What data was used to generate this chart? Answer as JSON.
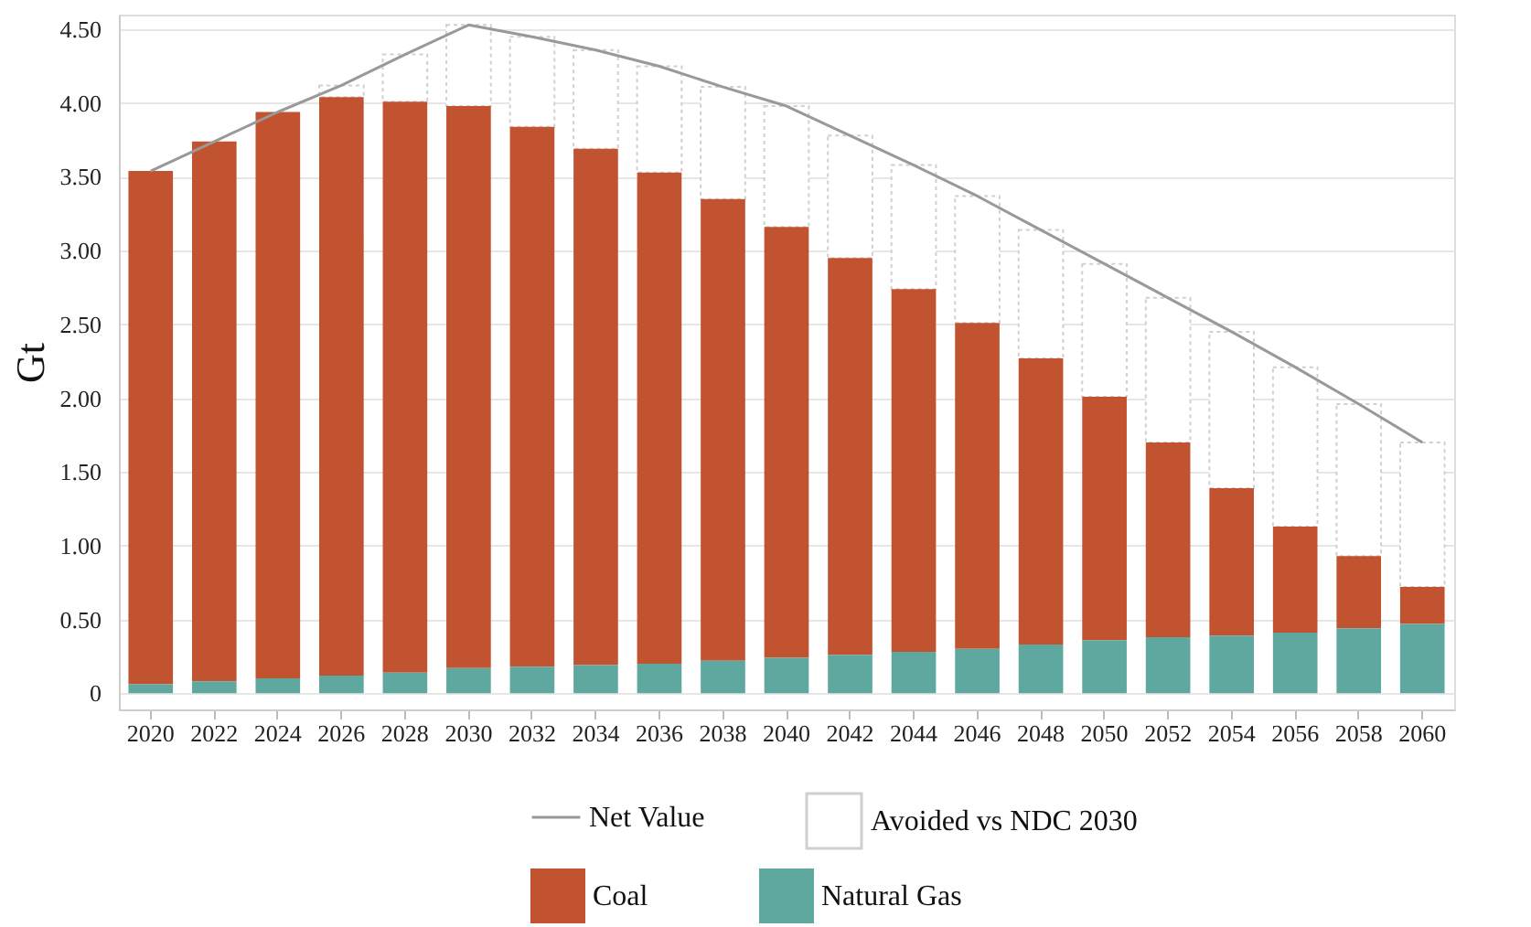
{
  "chart_data": {
    "type": "bar",
    "ylabel": "Gt",
    "stacked": true,
    "legend": "bottom",
    "grid": "y",
    "categories": [
      "2020",
      "2022",
      "2024",
      "2026",
      "2028",
      "2030",
      "2032",
      "2034",
      "2036",
      "2038",
      "2040",
      "2042",
      "2044",
      "2046",
      "2048",
      "2050",
      "2052",
      "2054",
      "2056",
      "2058",
      "2060"
    ],
    "ylim": [
      -0.11,
      4.6
    ],
    "yticks": [
      {
        "value": 0,
        "label": "0"
      },
      {
        "value": 0.5,
        "label": "0.50"
      },
      {
        "value": 1,
        "label": "1.00"
      },
      {
        "value": 1.5,
        "label": "1.50"
      },
      {
        "value": 2,
        "label": "2.00"
      },
      {
        "value": 2.5,
        "label": "2.50"
      },
      {
        "value": 3,
        "label": "3.00"
      },
      {
        "value": 3.5,
        "label": "3.50"
      },
      {
        "value": 4,
        "label": "4.00"
      },
      {
        "value": 4.5,
        "label": "4.50"
      }
    ],
    "series": [
      {
        "name": "Net Value",
        "type": "line",
        "color": "#999999",
        "values": [
          3.54,
          3.74,
          3.94,
          4.12,
          4.33,
          4.53,
          4.45,
          4.36,
          4.25,
          4.11,
          3.98,
          3.78,
          3.58,
          3.37,
          3.14,
          2.91,
          2.68,
          2.45,
          2.21,
          1.96,
          1.7
        ]
      },
      {
        "name": "Avoided vs NDC 2030",
        "color": "#ffffff",
        "values": [
          null,
          null,
          null,
          0.08,
          0.32,
          0.55,
          0.61,
          0.67,
          0.72,
          0.76,
          0.82,
          0.83,
          0.84,
          0.86,
          0.87,
          0.9,
          0.98,
          1.06,
          1.08,
          1.03,
          0.98
        ]
      },
      {
        "name": "Coal",
        "color": "#c25331",
        "values": [
          3.48,
          3.66,
          3.84,
          3.92,
          3.87,
          3.81,
          3.66,
          3.5,
          3.33,
          3.13,
          2.92,
          2.69,
          2.46,
          2.21,
          1.94,
          1.65,
          1.32,
          1.0,
          0.72,
          0.49,
          0.25
        ]
      },
      {
        "name": "Natural Gas",
        "color": "#5fa8a0",
        "values": [
          0.06,
          0.08,
          0.1,
          0.12,
          0.14,
          0.17,
          0.18,
          0.19,
          0.2,
          0.22,
          0.24,
          0.26,
          0.28,
          0.3,
          0.33,
          0.36,
          0.38,
          0.39,
          0.41,
          0.44,
          0.47
        ]
      }
    ]
  }
}
